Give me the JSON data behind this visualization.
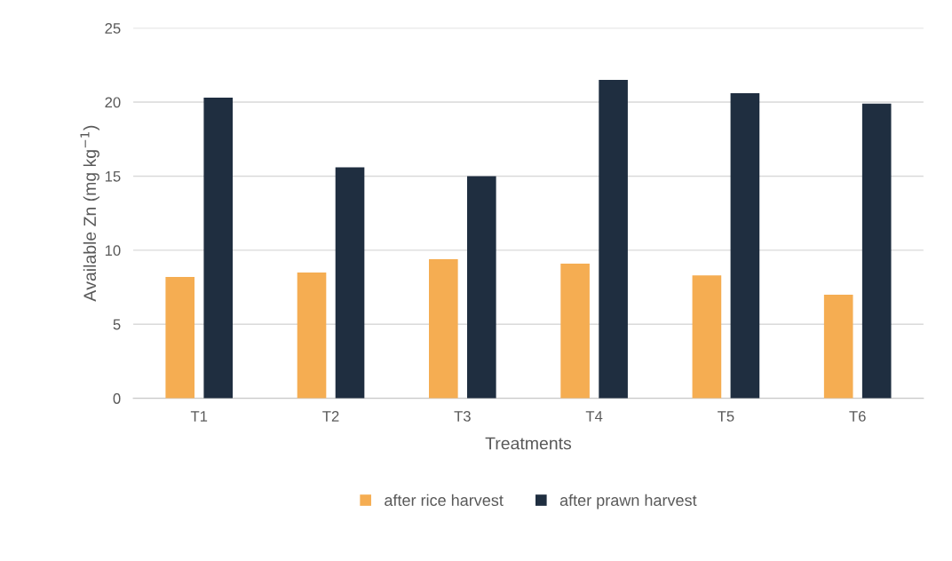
{
  "chart_data": {
    "type": "bar",
    "xlabel": "Treatments",
    "ylabel": "Available Zn (mg kg$^{−1}$)",
    "categories": [
      "T1",
      "T2",
      "T3",
      "T4",
      "T5",
      "T6"
    ],
    "series": [
      {
        "name": "after rice harvest",
        "color": "#f5ad52",
        "values": [
          8.2,
          8.5,
          9.4,
          9.1,
          8.3,
          7.0
        ]
      },
      {
        "name": "after prawn harvest",
        "color": "#1f2e40",
        "values": [
          20.3,
          15.6,
          15.0,
          21.5,
          20.6,
          19.9
        ]
      }
    ],
    "ylim": [
      0,
      25
    ],
    "yticks": [
      0,
      5,
      10,
      15,
      20,
      25
    ],
    "grid": "y",
    "legend": "bottom"
  }
}
